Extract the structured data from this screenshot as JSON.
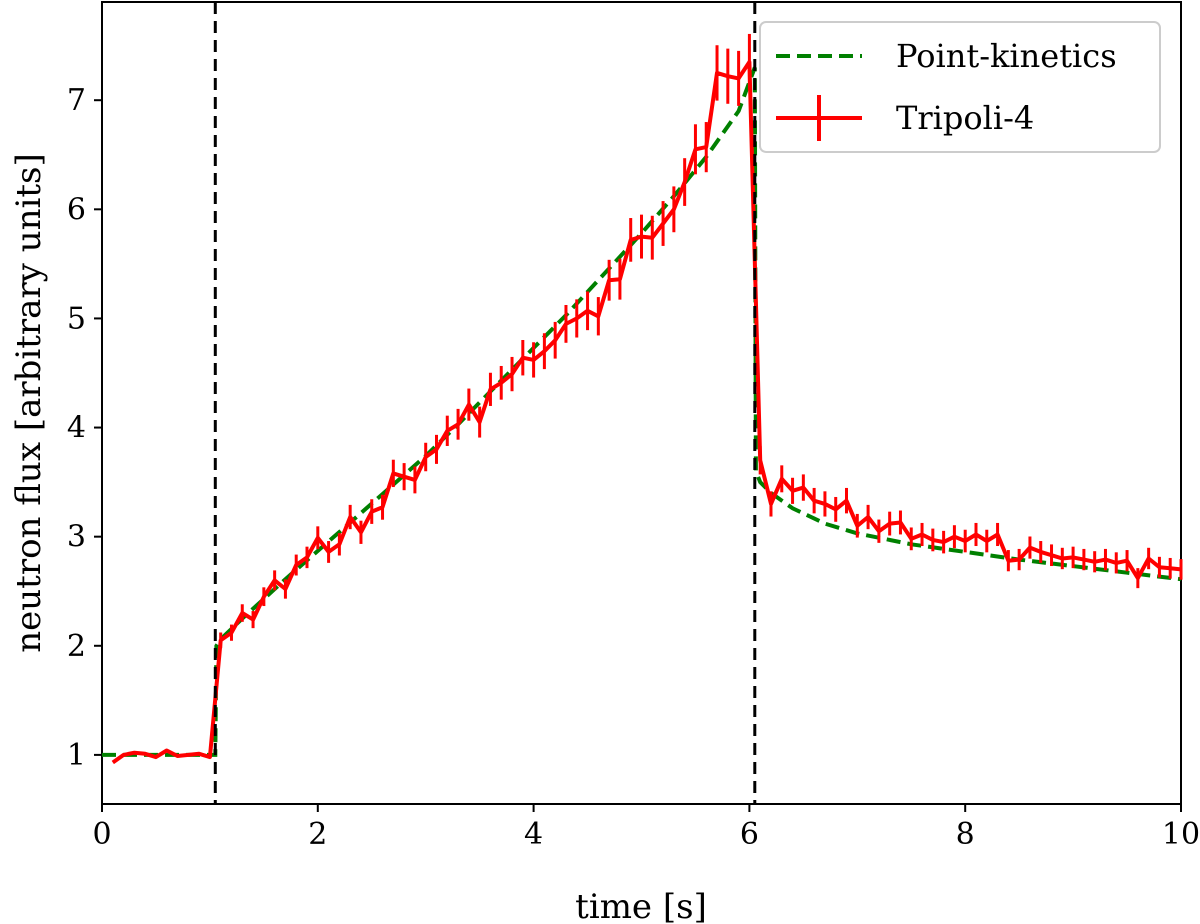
{
  "chart_data": {
    "type": "line",
    "title": "",
    "xlabel": "time [s]",
    "ylabel": "neutron flux [arbitrary units]",
    "xlim": [
      0,
      10
    ],
    "ylim": [
      0.55,
      7.9
    ],
    "xticks": [
      0,
      2,
      4,
      6,
      8,
      10
    ],
    "yticks": [
      1,
      2,
      3,
      4,
      5,
      6,
      7
    ],
    "grid": false,
    "legend_position": "top-right",
    "vlines": [
      1.05,
      6.05
    ],
    "series": [
      {
        "name": "Point-kinetics",
        "style": "dashed",
        "color": "#008000",
        "x": [
          0,
          1.05,
          1.06,
          1.1,
          1.3,
          1.5,
          1.7,
          2.0,
          2.3,
          2.6,
          3.0,
          3.3,
          3.6,
          4.0,
          4.3,
          4.6,
          5.0,
          5.3,
          5.6,
          5.9,
          6.05,
          6.06,
          6.1,
          6.2,
          6.4,
          6.7,
          7.0,
          7.5,
          8.0,
          8.5,
          9.0,
          9.5,
          10.0
        ],
        "y": [
          1.0,
          1.0,
          2.0,
          2.06,
          2.25,
          2.43,
          2.61,
          2.87,
          3.13,
          3.39,
          3.74,
          4.03,
          4.33,
          4.73,
          5.03,
          5.35,
          5.78,
          6.12,
          6.48,
          6.9,
          7.3,
          3.6,
          3.5,
          3.4,
          3.26,
          3.12,
          3.03,
          2.93,
          2.86,
          2.79,
          2.73,
          2.67,
          2.61
        ]
      },
      {
        "name": "Tripoli-4",
        "style": "solid-errorbar",
        "color": "#ff0000",
        "x": [
          0.1,
          0.2,
          0.3,
          0.4,
          0.5,
          0.6,
          0.7,
          0.8,
          0.9,
          1.0,
          1.1,
          1.2,
          1.3,
          1.4,
          1.5,
          1.6,
          1.7,
          1.8,
          1.9,
          2.0,
          2.1,
          2.2,
          2.3,
          2.4,
          2.5,
          2.6,
          2.7,
          2.8,
          2.9,
          3.0,
          3.1,
          3.2,
          3.3,
          3.4,
          3.5,
          3.6,
          3.7,
          3.8,
          3.9,
          4.0,
          4.1,
          4.2,
          4.3,
          4.4,
          4.5,
          4.6,
          4.7,
          4.8,
          4.9,
          5.0,
          5.1,
          5.2,
          5.3,
          5.4,
          5.5,
          5.6,
          5.7,
          5.8,
          5.9,
          6.0,
          6.1,
          6.2,
          6.3,
          6.4,
          6.5,
          6.6,
          6.7,
          6.8,
          6.9,
          7.0,
          7.1,
          7.2,
          7.3,
          7.4,
          7.5,
          7.6,
          7.7,
          7.8,
          7.9,
          8.0,
          8.1,
          8.2,
          8.3,
          8.4,
          8.5,
          8.6,
          8.7,
          8.8,
          8.9,
          9.0,
          9.1,
          9.2,
          9.3,
          9.4,
          9.5,
          9.6,
          9.7,
          9.8,
          9.9,
          10.0
        ],
        "y": [
          0.93,
          1.0,
          1.02,
          1.01,
          0.98,
          1.04,
          0.99,
          1.0,
          1.01,
          0.98,
          2.05,
          2.12,
          2.3,
          2.24,
          2.45,
          2.6,
          2.52,
          2.74,
          2.81,
          2.99,
          2.86,
          2.93,
          3.18,
          3.04,
          3.23,
          3.27,
          3.58,
          3.55,
          3.52,
          3.73,
          3.8,
          3.97,
          4.03,
          4.21,
          4.05,
          4.35,
          4.41,
          4.49,
          4.64,
          4.62,
          4.7,
          4.8,
          4.95,
          5.0,
          5.07,
          5.02,
          5.35,
          5.36,
          5.72,
          5.75,
          5.74,
          5.87,
          6.0,
          6.25,
          6.55,
          6.57,
          7.25,
          7.22,
          7.2,
          7.35,
          3.7,
          3.3,
          3.53,
          3.42,
          3.45,
          3.33,
          3.3,
          3.25,
          3.33,
          3.1,
          3.18,
          3.05,
          3.12,
          3.13,
          2.98,
          3.02,
          2.97,
          2.95,
          3.0,
          2.96,
          3.02,
          2.96,
          3.02,
          2.78,
          2.79,
          2.9,
          2.86,
          2.83,
          2.8,
          2.81,
          2.79,
          2.77,
          2.79,
          2.76,
          2.78,
          2.62,
          2.8,
          2.72,
          2.71,
          2.7
        ]
      }
    ]
  },
  "legend": {
    "items": [
      {
        "label": "Point-kinetics",
        "color": "#008000",
        "style": "dashed"
      },
      {
        "label": "Tripoli-4",
        "color": "#ff0000",
        "style": "solid-errorbar"
      }
    ]
  }
}
